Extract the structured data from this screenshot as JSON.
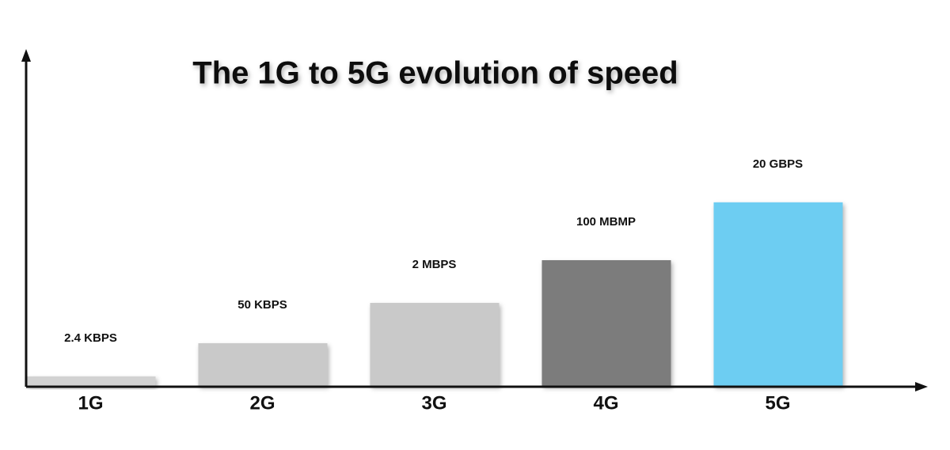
{
  "chart_data": {
    "type": "bar",
    "title": "The 1G to 5G evolution of speed",
    "categories": [
      "1G",
      "2G",
      "3G",
      "4G",
      "5G"
    ],
    "values": [
      2.4,
      50,
      2000,
      100000,
      20000000
    ],
    "value_labels": [
      "2.4 KBPS",
      "50 KBPS",
      "2 MBPS",
      "100 MBMP",
      "20 GBPS"
    ],
    "colors": [
      "#d2d2d2",
      "#c9c9c9",
      "#c9c9c9",
      "#7b7b7b",
      "#6dcdf2"
    ],
    "log_scale": true,
    "ylim": [
      1,
      10000000000
    ]
  }
}
